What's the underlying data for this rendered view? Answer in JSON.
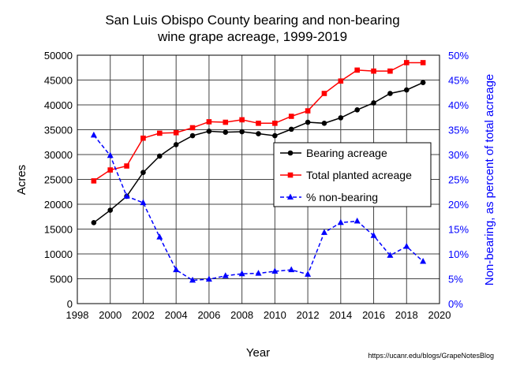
{
  "chart_data": {
    "type": "line",
    "title": [
      "San Luis Obispo County bearing and non-bearing",
      "wine grape acreage, 1999-2019"
    ],
    "xlabel": "Year",
    "ylabel": "Acres",
    "y2label": "Non-bearing, as percent of total acreage",
    "source_note": "https://ucanr.edu/blogs/GrapeNotesBlog",
    "xlim": [
      1998,
      2020
    ],
    "ylim": [
      0,
      50000
    ],
    "y2lim": [
      0,
      50
    ],
    "xticks": [
      "1998",
      "2000",
      "2002",
      "2004",
      "2006",
      "2008",
      "2010",
      "2012",
      "2014",
      "2016",
      "2018",
      "2020"
    ],
    "yticks": [
      "0",
      "5000",
      "10000",
      "15000",
      "20000",
      "25000",
      "30000",
      "35000",
      "40000",
      "45000",
      "50000"
    ],
    "y2ticks": [
      "0%",
      "5%",
      "10%",
      "15%",
      "20%",
      "25%",
      "30%",
      "35%",
      "40%",
      "45%",
      "50%"
    ],
    "grid": true,
    "legend_placement": "center-right",
    "x": [
      1999,
      2000,
      2001,
      2002,
      2003,
      2004,
      2005,
      2006,
      2007,
      2008,
      2009,
      2010,
      2011,
      2012,
      2013,
      2014,
      2015,
      2016,
      2017,
      2018,
      2019
    ],
    "series": [
      {
        "name": "Bearing acreage",
        "axis": "left",
        "color": "#000000",
        "marker": "circle",
        "dash": false,
        "values": [
          16300,
          18800,
          21600,
          26400,
          29700,
          32000,
          33800,
          34700,
          34500,
          34600,
          34200,
          33800,
          35100,
          36500,
          36300,
          37400,
          39000,
          40400,
          42300,
          43000,
          44500
        ]
      },
      {
        "name": "Total planted acreage",
        "axis": "left",
        "color": "#ff0000",
        "marker": "square",
        "dash": false,
        "values": [
          24700,
          26900,
          27700,
          33300,
          34300,
          34400,
          35400,
          36600,
          36500,
          37000,
          36300,
          36300,
          37700,
          38800,
          42300,
          44800,
          47000,
          46800,
          46800,
          48500,
          48500
        ]
      },
      {
        "name": "% non-bearing",
        "axis": "right",
        "color": "#0000ff",
        "marker": "triangle",
        "dash": true,
        "values": [
          33.9,
          29.8,
          21.6,
          20.3,
          13.4,
          6.8,
          4.7,
          4.9,
          5.6,
          6.0,
          6.1,
          6.5,
          6.8,
          5.9,
          14.3,
          16.3,
          16.6,
          13.7,
          9.7,
          11.5,
          8.5
        ]
      }
    ]
  }
}
